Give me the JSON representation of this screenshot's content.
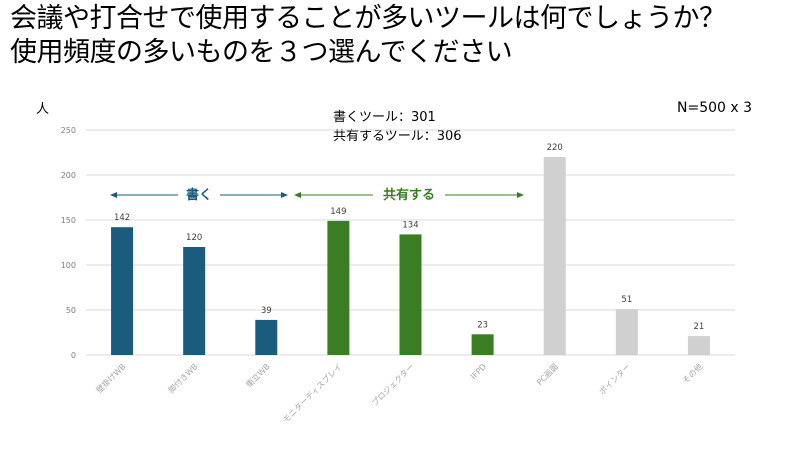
{
  "title_lines": [
    "会議や打合せで使用することが多いツールは何でしょうか？",
    "使用頻度の多いものを３つ選んでください"
  ],
  "notes": {
    "write_total": "書くツール：301",
    "share_total": "共有するツール：306"
  },
  "unit_label": "人",
  "sample_size": "N=500 x 3",
  "group_labels": {
    "write": "書く",
    "share": "共有する"
  },
  "colors": {
    "write": "#1b5b7e",
    "share": "#3b7d23",
    "other": "#d0d0d0",
    "grid": "#d9d9d9"
  },
  "chart_data": {
    "type": "bar",
    "categories": [
      "壁掛けWB",
      "脚付きWB",
      "衝立WB",
      "モニターディスプレイ",
      "プロジェクター",
      "IFPD",
      "PC画面",
      "ポインター",
      "その他"
    ],
    "values": [
      142,
      120,
      39,
      149,
      134,
      23,
      220,
      51,
      21
    ],
    "groups": [
      "write",
      "write",
      "write",
      "share",
      "share",
      "share",
      "other",
      "other",
      "other"
    ],
    "ylim": [
      0,
      250
    ],
    "yticks": [
      0,
      50,
      100,
      150,
      200,
      250
    ],
    "grid": true,
    "legend": "none"
  }
}
